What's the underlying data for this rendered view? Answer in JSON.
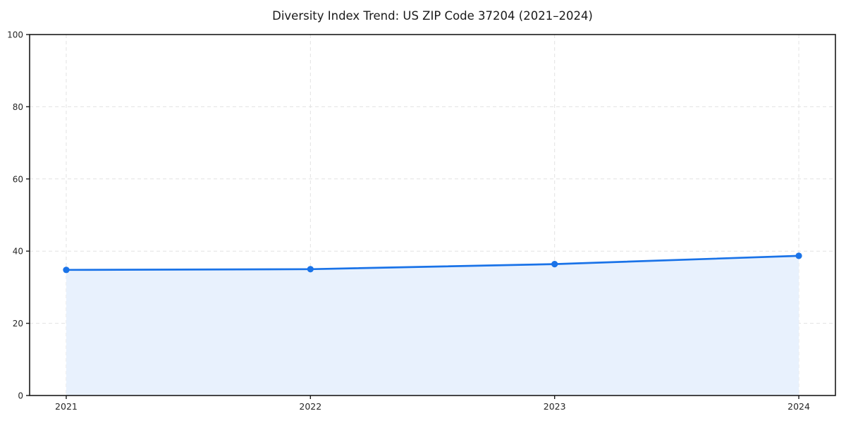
{
  "chart_data": {
    "type": "area",
    "title": "Diversity Index Trend: US ZIP Code 37204 (2021–2024)",
    "xlabel": "",
    "ylabel": "",
    "x": [
      2021,
      2022,
      2023,
      2024
    ],
    "categories": [
      "2021",
      "2022",
      "2023",
      "2024"
    ],
    "series": [
      {
        "name": "Diversity Index",
        "values": [
          34.8,
          35.0,
          36.4,
          38.7
        ]
      }
    ],
    "xticks": [
      2021,
      2022,
      2023,
      2024
    ],
    "yticks": [
      0,
      20,
      40,
      60,
      80,
      100
    ],
    "xlim": [
      2020.85,
      2024.15
    ],
    "ylim": [
      0,
      100
    ],
    "grid": true,
    "grid_style": "dashed",
    "legend": false,
    "colors": {
      "line": "#1a73e8",
      "marker": "#1a73e8",
      "fill": "#e8f1fd",
      "grid": "#e2e2e2",
      "frame": "#1a1a1a",
      "tick_text": "#262626",
      "background": "#ffffff"
    }
  }
}
